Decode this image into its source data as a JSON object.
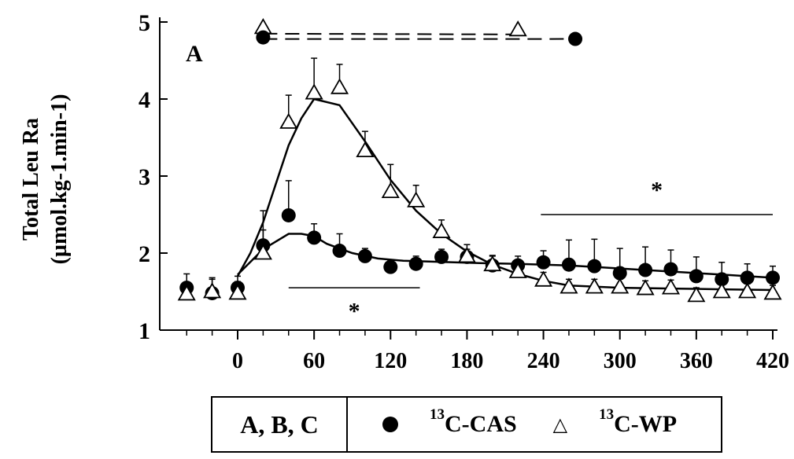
{
  "chart_data": {
    "type": "line",
    "panel_label": "A",
    "ylabel_line1": "Total Leu Ra",
    "ylabel_line2": "(µmol.kg-1.min-1)",
    "xlabel": "",
    "xlim": [
      -45,
      420
    ],
    "ylim": [
      1,
      5
    ],
    "xticks": [
      0,
      60,
      120,
      180,
      240,
      300,
      360,
      420
    ],
    "xtick_labels": [
      "0",
      "60",
      "120",
      "180",
      "240",
      "300",
      "360",
      "420"
    ],
    "yticks": [
      1,
      2,
      3,
      4,
      5
    ],
    "ytick_labels": [
      "1",
      "2",
      "3",
      "4",
      "5"
    ],
    "series": [
      {
        "name": "13C-CAS",
        "marker": "filled-circle",
        "x": [
          -40,
          -20,
          0,
          20,
          40,
          60,
          80,
          100,
          120,
          140,
          160,
          180,
          200,
          220,
          240,
          260,
          280,
          300,
          320,
          340,
          360,
          380,
          400,
          420
        ],
        "y": [
          1.55,
          1.48,
          1.55,
          2.1,
          2.49,
          2.2,
          2.03,
          1.96,
          1.82,
          1.86,
          1.95,
          1.95,
          1.84,
          1.84,
          1.88,
          1.85,
          1.83,
          1.74,
          1.78,
          1.79,
          1.7,
          1.66,
          1.68,
          1.68
        ],
        "err": [
          0.18,
          0.18,
          0.15,
          0.45,
          0.45,
          0.18,
          0.22,
          0.1,
          0.08,
          0.1,
          0.1,
          0.1,
          0.12,
          0.12,
          0.15,
          0.32,
          0.35,
          0.32,
          0.3,
          0.25,
          0.25,
          0.22,
          0.18,
          0.15
        ],
        "fit_x": [
          0,
          20,
          40,
          50,
          60,
          70,
          90,
          110,
          130,
          150,
          170,
          190,
          220,
          260,
          300,
          340,
          380,
          420
        ],
        "fit_y": [
          1.72,
          2.05,
          2.25,
          2.25,
          2.22,
          2.12,
          2.0,
          1.93,
          1.9,
          1.89,
          1.88,
          1.87,
          1.86,
          1.84,
          1.8,
          1.76,
          1.72,
          1.68
        ]
      },
      {
        "name": "13C-WP",
        "marker": "open-triangle",
        "x": [
          -40,
          -20,
          0,
          20,
          40,
          60,
          80,
          100,
          120,
          140,
          160,
          180,
          200,
          220,
          240,
          260,
          280,
          300,
          320,
          340,
          360,
          380,
          400,
          420
        ],
        "y": [
          1.47,
          1.5,
          1.48,
          2.0,
          3.7,
          4.08,
          4.15,
          3.33,
          2.8,
          2.68,
          2.28,
          1.96,
          1.85,
          1.76,
          1.65,
          1.56,
          1.56,
          1.56,
          1.54,
          1.55,
          1.45,
          1.5,
          1.5,
          1.48
        ],
        "err": [
          0.15,
          0.18,
          0.15,
          0.3,
          0.35,
          0.45,
          0.3,
          0.25,
          0.35,
          0.2,
          0.15,
          0.15,
          0.12,
          0.1,
          0.1,
          0.1,
          0.1,
          0.1,
          0.1,
          0.1,
          0.1,
          0.1,
          0.1,
          0.1
        ],
        "fit_x": [
          0,
          10,
          20,
          30,
          40,
          50,
          60,
          80,
          100,
          120,
          140,
          160,
          180,
          200,
          220,
          240,
          260,
          300,
          340,
          380,
          420
        ],
        "fit_y": [
          1.7,
          2.0,
          2.4,
          2.9,
          3.4,
          3.75,
          4.0,
          3.92,
          3.45,
          2.95,
          2.55,
          2.25,
          2.02,
          1.85,
          1.73,
          1.64,
          1.58,
          1.55,
          1.54,
          1.53,
          1.52
        ]
      }
    ],
    "significance": [
      {
        "label": "*",
        "x_start": 40,
        "x_end": 143,
        "y": 1.55,
        "label_y": 1.25
      },
      {
        "label": "*",
        "x_start": 238,
        "x_end": 420,
        "y": 2.5,
        "label_y": 2.82
      }
    ],
    "legend_dash": {
      "wp_start": {
        "x": 20,
        "y": 4.93
      },
      "wp_end": {
        "x": 220,
        "y": 4.9
      },
      "cas_start": {
        "x": 20,
        "y": 4.8
      },
      "cas_end": {
        "x": 265,
        "y": 4.78
      }
    },
    "legend": {
      "groups_label": "A, B, C",
      "cas_label_sup": "13",
      "cas_label": "C-CAS",
      "wp_label_sup": "13",
      "wp_label": "C-WP"
    }
  }
}
